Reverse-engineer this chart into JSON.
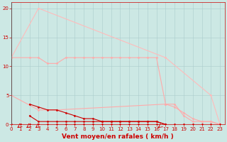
{
  "background_color": "#cce8e4",
  "grid_color": "#aacccc",
  "xlabel": "Vent moyen/en rafales ( km/h )",
  "xlabel_color": "#cc0000",
  "xlabel_fontsize": 6.5,
  "ylabel_ticks": [
    0,
    5,
    10,
    15,
    20
  ],
  "xticks": [
    0,
    1,
    2,
    3,
    4,
    5,
    6,
    7,
    8,
    9,
    10,
    11,
    12,
    13,
    14,
    15,
    16,
    17,
    18,
    19,
    20,
    21,
    22,
    23
  ],
  "xlim": [
    0,
    23.5
  ],
  "ylim": [
    0,
    21
  ],
  "tick_fontsize": 5.0,
  "lines": [
    {
      "x": [
        0,
        1,
        2,
        3,
        4,
        5,
        6,
        7,
        8,
        9,
        10,
        11,
        12,
        13,
        14,
        15,
        16,
        17,
        18,
        19,
        20,
        21,
        22,
        23
      ],
      "y": [
        0,
        0,
        0,
        0,
        0,
        0,
        0,
        0,
        0,
        0,
        0,
        0,
        0,
        0,
        0,
        0,
        0,
        0,
        0,
        0,
        0,
        0,
        0,
        0
      ],
      "color": "#cc0000",
      "linewidth": 0.8,
      "marker": "D",
      "markersize": 1.5,
      "zorder": 6
    },
    {
      "x": [
        2,
        3,
        4,
        5,
        6,
        7,
        8,
        9,
        10,
        11,
        12,
        13,
        14,
        15,
        16,
        17
      ],
      "y": [
        3.5,
        3,
        2.5,
        2.5,
        2,
        1.5,
        1,
        1,
        0.5,
        0.5,
        0.5,
        0.5,
        0.5,
        0.5,
        0.5,
        0
      ],
      "color": "#cc0000",
      "linewidth": 0.8,
      "marker": "D",
      "markersize": 1.5,
      "zorder": 6
    },
    {
      "x": [
        2,
        3,
        4,
        5,
        6,
        7,
        8,
        9,
        10,
        11,
        12,
        13,
        14,
        15,
        16,
        17
      ],
      "y": [
        1.5,
        0.5,
        0.5,
        0.5,
        0.5,
        0.5,
        0.5,
        0.5,
        0.5,
        0.5,
        0.5,
        0.5,
        0.5,
        0.5,
        0.5,
        0
      ],
      "color": "#cc0000",
      "linewidth": 0.8,
      "marker": "D",
      "markersize": 1.5,
      "zorder": 6
    },
    {
      "x": [
        0,
        1,
        2,
        3,
        4,
        5,
        6,
        7,
        8,
        9,
        10,
        11,
        12,
        13,
        14,
        15,
        16,
        17,
        18,
        19,
        20,
        21,
        22,
        23
      ],
      "y": [
        0,
        0,
        0,
        0,
        0,
        0,
        0,
        0,
        0,
        0,
        0,
        0,
        0,
        0,
        0,
        0,
        0,
        0,
        0,
        0,
        0,
        0,
        0,
        0
      ],
      "color": "#ff8888",
      "linewidth": 0.7,
      "marker": "D",
      "markersize": 1.5,
      "zorder": 5
    },
    {
      "x": [
        0,
        3,
        5,
        17,
        18,
        19,
        20,
        21,
        22,
        23
      ],
      "y": [
        5,
        2.5,
        2.5,
        3.5,
        3.0,
        2.0,
        1.0,
        0.5,
        0.5,
        0
      ],
      "color": "#ffaaaa",
      "linewidth": 0.8,
      "marker": "D",
      "markersize": 1.5,
      "zorder": 4
    },
    {
      "x": [
        0,
        2,
        3,
        4,
        5,
        6,
        7,
        8,
        9,
        10,
        11,
        12,
        13,
        14,
        15,
        16,
        17,
        18,
        19,
        20,
        21,
        22,
        23
      ],
      "y": [
        11.5,
        11.5,
        11.5,
        10.5,
        10.5,
        11.5,
        11.5,
        11.5,
        11.5,
        11.5,
        11.5,
        11.5,
        11.5,
        11.5,
        11.5,
        11.5,
        3.5,
        3.5,
        1.5,
        0.5,
        0.5,
        0.5,
        0
      ],
      "color": "#ffaaaa",
      "linewidth": 0.8,
      "marker": "D",
      "markersize": 1.5,
      "zorder": 4
    },
    {
      "comment": "lightest pink - big triangle: x=0 y=11.5, x=3 y=20, x=22 y=5, x=23 y=0",
      "x": [
        0,
        3,
        17,
        22,
        23
      ],
      "y": [
        11.5,
        20,
        11.5,
        5,
        0
      ],
      "color": "#ffbbbb",
      "linewidth": 0.8,
      "marker": "D",
      "markersize": 1.5,
      "zorder": 3
    }
  ],
  "vline_x": 0,
  "vline_color": "#555555",
  "vline_lw": 1.2
}
